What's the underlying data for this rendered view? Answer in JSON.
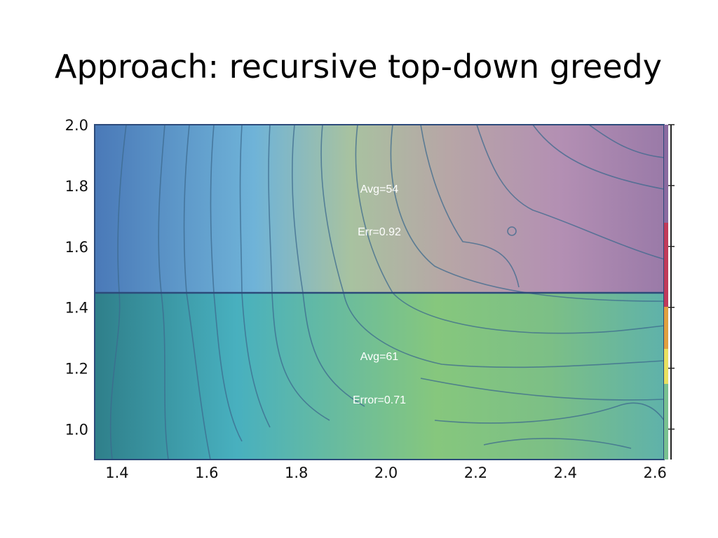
{
  "slide": {
    "title": "Approach: recursive top-down greedy"
  },
  "colors": {
    "upper_overlay": "#5a6fc0",
    "lower_overlay": "#2a8a86",
    "region_text": "#ffffff",
    "split_line": "#2c4a7a"
  },
  "chart_data": {
    "type": "heatmap",
    "description_of_kind": "contour plot partitioned by a horizontal split",
    "xlim": [
      1.35,
      2.62
    ],
    "ylim": [
      0.9,
      2.0
    ],
    "x_ticks": [
      "1.4",
      "1.6",
      "1.8",
      "2.0",
      "2.2",
      "2.4",
      "2.6"
    ],
    "y_ticks": [
      "2.0",
      "1.8",
      "1.6",
      "1.4",
      "1.2",
      "1.0"
    ],
    "split": {
      "axis": "y",
      "value": 1.44
    },
    "regions": [
      {
        "name": "upper",
        "avg_label": "Avg=54",
        "err_label": "Err=0.92"
      },
      {
        "name": "lower",
        "avg_label": "Avg=61",
        "err_label": "Error=0.71"
      }
    ],
    "grid": false
  }
}
